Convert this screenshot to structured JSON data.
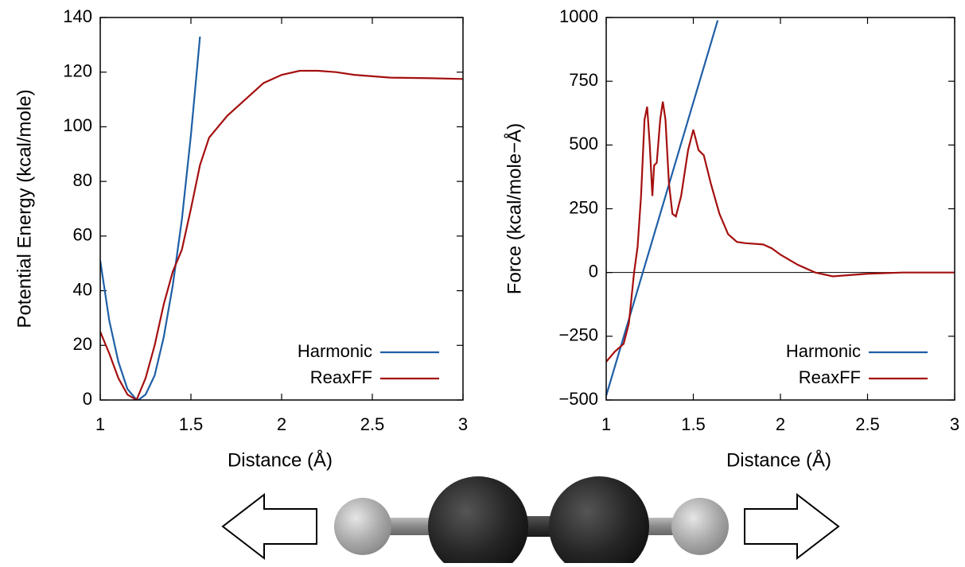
{
  "chart_data": [
    {
      "type": "line",
      "x_label": "Distance (Å)",
      "y_label": "Potential Energy (kcal/mole)",
      "xlim": [
        1,
        3
      ],
      "ylim": [
        0,
        140
      ],
      "xticks": [
        1,
        1.5,
        2,
        2.5,
        3
      ],
      "yticks": [
        0,
        20,
        40,
        60,
        80,
        100,
        120,
        140
      ],
      "legend": "lower right",
      "series": [
        {
          "name": "Harmonic",
          "color": "#1f5fa6",
          "x": [
            1,
            1.05,
            1.1,
            1.15,
            1.2,
            1.21,
            1.25,
            1.3,
            1.35,
            1.4,
            1.45,
            1.5,
            1.55
          ],
          "values": [
            51,
            29,
            14,
            4,
            0.1,
            0,
            2,
            9,
            23,
            42,
            66,
            97,
            133
          ]
        },
        {
          "name": "ReaxFF",
          "color": "#a50f0f",
          "x": [
            1,
            1.05,
            1.1,
            1.15,
            1.2,
            1.25,
            1.3,
            1.35,
            1.4,
            1.45,
            1.5,
            1.55,
            1.6,
            1.7,
            1.8,
            1.9,
            2.0,
            2.1,
            2.2,
            2.3,
            2.4,
            2.5,
            2.6,
            2.8,
            3.0
          ],
          "values": [
            25,
            17,
            8,
            2,
            0,
            8,
            20,
            35,
            47,
            55,
            70,
            86,
            96,
            104,
            110,
            116,
            119,
            120.5,
            120.5,
            120,
            119,
            118.5,
            118,
            117.8,
            117.5
          ]
        }
      ]
    },
    {
      "type": "line",
      "x_label": "Distance (Å)",
      "y_label": "Force (kcal/mole−Å)",
      "xlim": [
        1,
        3
      ],
      "ylim": [
        -500,
        1000
      ],
      "xticks": [
        1,
        1.5,
        2,
        2.5,
        3
      ],
      "yticks": [
        {
          "value": -500,
          "label": "−500"
        },
        {
          "value": -250,
          "label": "−250"
        },
        0,
        250,
        500,
        750,
        1000
      ],
      "zero_line": true,
      "legend": "lower right",
      "series": [
        {
          "name": "Harmonic",
          "color": "#1f5fa6",
          "x": [
            1,
            1.64
          ],
          "values": [
            -483,
            989
          ]
        },
        {
          "name": "ReaxFF",
          "color": "#a50f0f",
          "x": [
            1,
            1.05,
            1.1,
            1.13,
            1.16,
            1.18,
            1.2,
            1.22,
            1.235,
            1.25,
            1.265,
            1.275,
            1.29,
            1.31,
            1.325,
            1.34,
            1.36,
            1.38,
            1.4,
            1.43,
            1.47,
            1.5,
            1.53,
            1.56,
            1.6,
            1.65,
            1.7,
            1.75,
            1.8,
            1.9,
            1.95,
            2.0,
            2.1,
            2.2,
            2.3,
            2.4,
            2.5,
            2.7,
            3.0
          ],
          "values": [
            -350,
            -310,
            -280,
            -200,
            0,
            100,
            300,
            600,
            650,
            500,
            300,
            420,
            430,
            600,
            670,
            600,
            350,
            230,
            220,
            300,
            480,
            560,
            480,
            460,
            350,
            230,
            150,
            120,
            115,
            110,
            95,
            70,
            30,
            0,
            -15,
            -10,
            -5,
            0,
            0
          ]
        }
      ]
    }
  ]
}
